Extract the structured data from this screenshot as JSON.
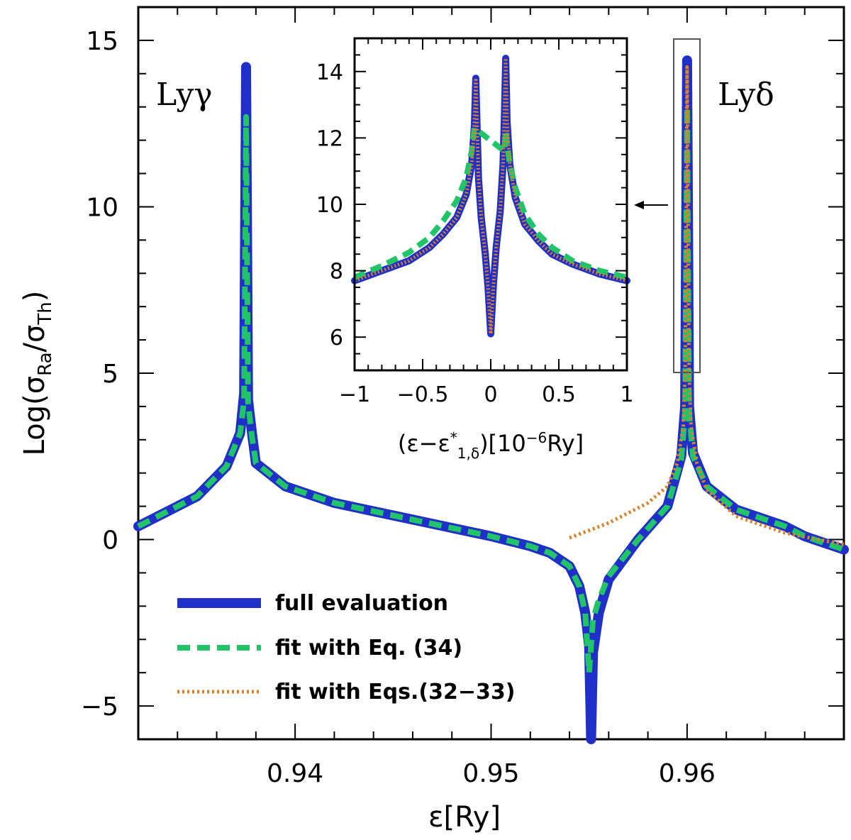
{
  "colors": {
    "full": "#1f2fc8",
    "eq34": "#22c46a",
    "eq3233": "#d9822b"
  },
  "chart_data": [
    {
      "type": "line",
      "title": "",
      "xlabel": "ε[Ry]",
      "ylabel": "Log(σ_Ra/σ_Th)",
      "ylabel_parts": {
        "prefix": "Log(σ",
        "sub1": "Ra",
        "mid": "/σ",
        "sub2": "Th",
        "suffix": ")"
      },
      "xlim": [
        0.932,
        0.968
      ],
      "ylim": [
        -6,
        16
      ],
      "xticks": [
        0.94,
        0.95,
        0.96
      ],
      "xtick_labels": [
        "0.94",
        "0.95",
        "0.96"
      ],
      "yticks": [
        -5,
        0,
        5,
        10,
        15
      ],
      "ytick_labels": [
        "−5",
        "0",
        "5",
        "10",
        "15"
      ],
      "annotations": [
        "Lyγ",
        "Lyδ"
      ],
      "legend": {
        "location": "lower-left",
        "entries": [
          "full evaluation",
          "fit with Eq. (34)",
          "fit with Eqs.(32−33)"
        ]
      },
      "series": [
        {
          "name": "full evaluation",
          "style": "solid",
          "x": [
            0.932,
            0.935,
            0.9365,
            0.9372,
            0.9374,
            0.9375,
            0.9376,
            0.9378,
            0.938,
            0.9395,
            0.942,
            0.946,
            0.95,
            0.952,
            0.953,
            0.954,
            0.9545,
            0.9548,
            0.955,
            0.9551,
            0.9552,
            0.9555,
            0.956,
            0.9575,
            0.959,
            0.9597,
            0.9599,
            0.96,
            0.9601,
            0.9603,
            0.961,
            0.9625,
            0.965,
            0.966,
            0.968
          ],
          "y": [
            0.4,
            1.3,
            2.2,
            3.2,
            4.4,
            14.2,
            4.2,
            3.2,
            2.3,
            1.6,
            1.1,
            0.6,
            0.1,
            -0.2,
            -0.4,
            -0.8,
            -1.4,
            -2.2,
            -3.2,
            -6.0,
            -3.4,
            -2.2,
            -1.2,
            0.0,
            1.0,
            2.5,
            4.0,
            14.4,
            4.0,
            2.6,
            1.6,
            0.9,
            0.4,
            0.1,
            -0.3
          ]
        },
        {
          "name": "fit with Eq. (34)",
          "style": "dashed",
          "x": [
            0.932,
            0.935,
            0.9365,
            0.9372,
            0.9374,
            0.9375,
            0.9376,
            0.9378,
            0.938,
            0.9395,
            0.942,
            0.946,
            0.95,
            0.952,
            0.953,
            0.954,
            0.9545,
            0.9548,
            0.955,
            0.9552,
            0.9555,
            0.956,
            0.9575,
            0.959,
            0.9597,
            0.9599,
            0.96,
            0.9601,
            0.9603,
            0.961,
            0.9625,
            0.965,
            0.966,
            0.968
          ],
          "y": [
            0.4,
            1.3,
            2.2,
            3.2,
            4.2,
            12.7,
            4.1,
            3.1,
            2.3,
            1.6,
            1.1,
            0.6,
            0.1,
            -0.2,
            -0.4,
            -0.8,
            -1.4,
            -2.2,
            -4.0,
            -2.4,
            -1.8,
            -1.1,
            0.0,
            1.0,
            2.4,
            3.8,
            13.0,
            3.8,
            2.5,
            1.6,
            0.9,
            0.4,
            0.1,
            -0.3
          ]
        },
        {
          "name": "fit with Eqs.(32−33)",
          "style": "dotted",
          "x": [
            0.954,
            0.956,
            0.958,
            0.959,
            0.9595,
            0.9598,
            0.9599,
            0.96,
            0.9601,
            0.9602,
            0.9605,
            0.961,
            0.9625,
            0.965,
            0.968
          ],
          "y": [
            0.05,
            0.5,
            1.1,
            1.6,
            2.3,
            3.4,
            5.0,
            14.2,
            5.0,
            3.4,
            2.3,
            1.5,
            0.7,
            0.2,
            -0.15
          ]
        }
      ]
    },
    {
      "type": "line",
      "title": "",
      "xlabel": "(ε−ε*1,δ)[10⁻⁶Ry]",
      "xlabel_parts": {
        "prefix": "(ε−ε",
        "sup": "*",
        "sub": "1,δ",
        "mid": ")[10",
        "sup2": "−6",
        "suffix": "Ry]"
      },
      "ylabel": "",
      "xlim": [
        -1,
        1
      ],
      "ylim": [
        5,
        15
      ],
      "xticks": [
        -1,
        -0.5,
        0,
        0.5,
        1
      ],
      "xtick_labels": [
        "−1",
        "−0.5",
        "0",
        "0.5",
        "1"
      ],
      "yticks": [
        6,
        8,
        10,
        12,
        14
      ],
      "ytick_labels": [
        "6",
        "8",
        "10",
        "12",
        "14"
      ],
      "series": [
        {
          "name": "full evaluation",
          "style": "solid",
          "x": [
            -1.0,
            -0.8,
            -0.6,
            -0.45,
            -0.35,
            -0.25,
            -0.18,
            -0.14,
            -0.12,
            -0.11,
            -0.1,
            -0.09,
            -0.07,
            -0.04,
            -0.02,
            0.0,
            0.02,
            0.04,
            0.07,
            0.09,
            0.1,
            0.11,
            0.12,
            0.14,
            0.18,
            0.25,
            0.35,
            0.45,
            0.6,
            0.8,
            1.0
          ],
          "y": [
            7.7,
            8.0,
            8.3,
            8.7,
            9.1,
            9.6,
            10.3,
            11.2,
            12.4,
            13.8,
            12.3,
            10.8,
            9.6,
            8.5,
            7.5,
            6.1,
            7.6,
            8.7,
            9.8,
            11.2,
            12.6,
            14.4,
            12.5,
            11.2,
            10.2,
            9.4,
            8.9,
            8.5,
            8.2,
            7.9,
            7.7
          ]
        },
        {
          "name": "fit with Eq. (34)",
          "style": "dashed",
          "x": [
            -1.0,
            -0.8,
            -0.6,
            -0.45,
            -0.35,
            -0.25,
            -0.18,
            -0.14,
            -0.12,
            0.1,
            0.11,
            0.12,
            0.14,
            0.18,
            0.25,
            0.35,
            0.45,
            0.6,
            0.8,
            1.0
          ],
          "y": [
            7.8,
            8.15,
            8.55,
            9.0,
            9.5,
            10.1,
            10.8,
            11.6,
            12.3,
            11.6,
            12.2,
            11.8,
            11.2,
            10.5,
            9.7,
            9.1,
            8.7,
            8.3,
            8.0,
            7.8
          ]
        },
        {
          "name": "fit with Eqs.(32−33)",
          "style": "dotted",
          "x": [
            -1.0,
            -0.8,
            -0.6,
            -0.45,
            -0.35,
            -0.25,
            -0.18,
            -0.14,
            -0.12,
            -0.11,
            -0.1,
            -0.09,
            -0.07,
            -0.04,
            -0.02,
            0.0,
            0.02,
            0.04,
            0.07,
            0.09,
            0.1,
            0.11,
            0.12,
            0.14,
            0.18,
            0.25,
            0.35,
            0.45,
            0.6,
            0.8,
            1.0
          ],
          "y": [
            7.7,
            8.0,
            8.3,
            8.7,
            9.1,
            9.6,
            10.3,
            11.2,
            12.4,
            13.8,
            12.3,
            10.8,
            9.6,
            8.5,
            7.5,
            6.1,
            7.6,
            8.7,
            9.8,
            11.2,
            12.6,
            14.4,
            12.5,
            11.2,
            10.2,
            9.4,
            8.9,
            8.5,
            8.2,
            7.9,
            7.7
          ]
        }
      ]
    }
  ]
}
